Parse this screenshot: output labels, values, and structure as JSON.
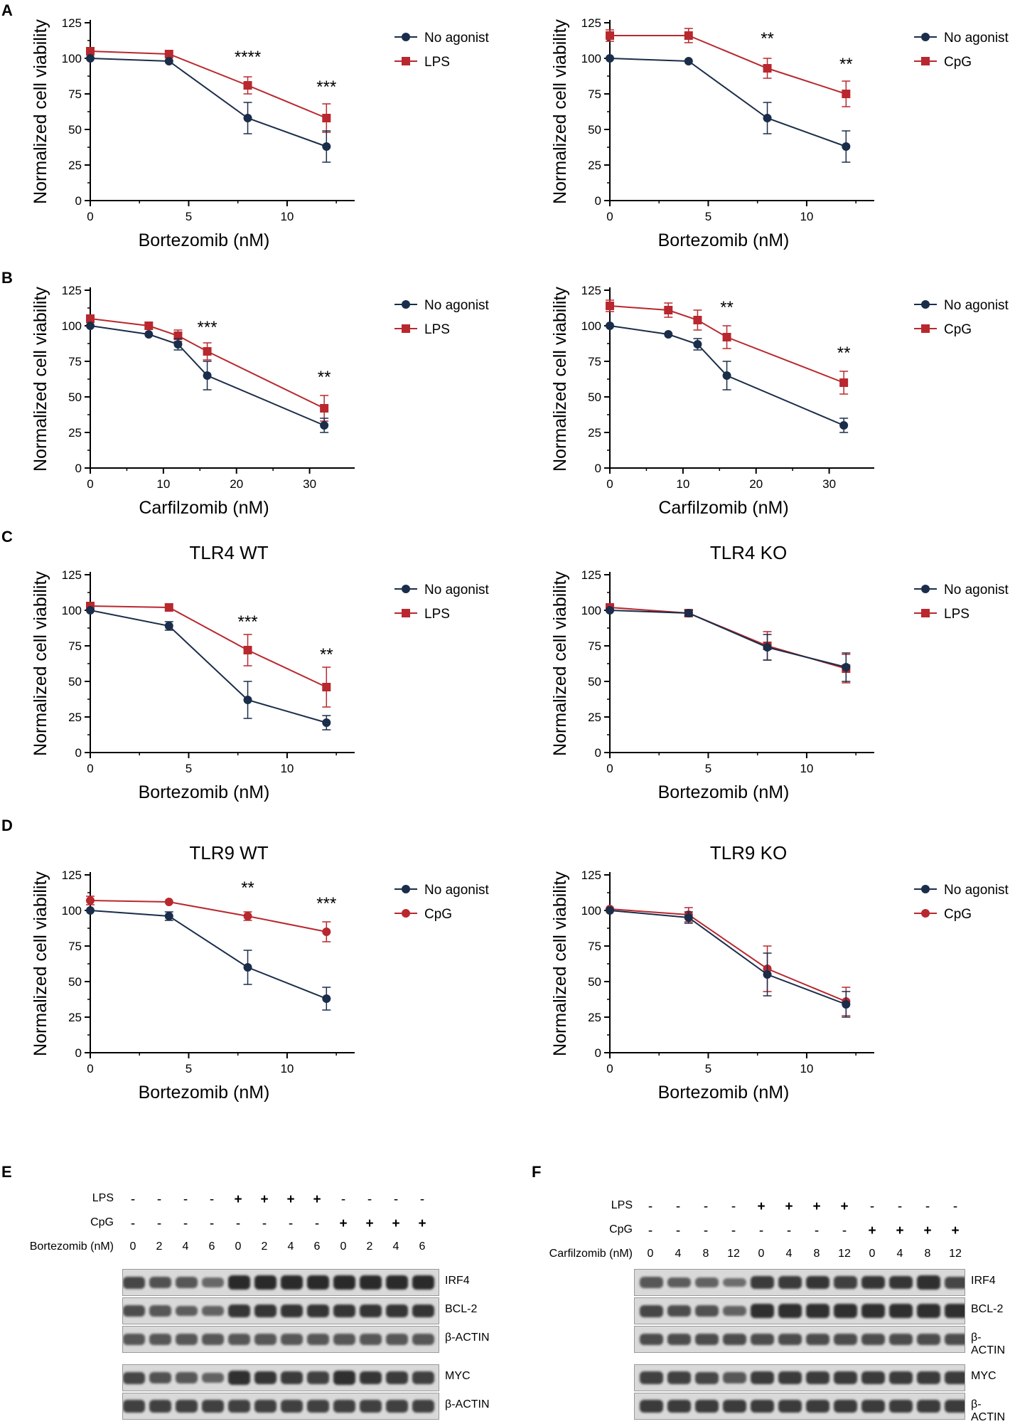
{
  "colors": {
    "control": "#1a2d4a",
    "agonist": "#b8282e",
    "band": "#2a2a2a"
  },
  "panel_letters": [
    "A",
    "B",
    "C",
    "D",
    "E",
    "F"
  ],
  "chart_data": [
    {
      "id": "A1",
      "type": "line",
      "title": "",
      "xlabel": "Bortezomib (nM)",
      "ylabel": "Normalized cell viability",
      "xlim": [
        0,
        13
      ],
      "ylim": [
        0,
        125
      ],
      "xticks": [
        0,
        5,
        10
      ],
      "yticks": [
        0,
        25,
        50,
        75,
        100,
        125
      ],
      "agonist_marker": "square",
      "series": [
        {
          "name": "No agonist",
          "x": [
            0,
            4,
            8,
            12
          ],
          "y": [
            100,
            98,
            58,
            38
          ],
          "err": [
            0,
            0,
            11,
            11
          ]
        },
        {
          "name": "LPS",
          "x": [
            0,
            4,
            8,
            12
          ],
          "y": [
            105,
            103,
            81,
            58
          ],
          "err": [
            0,
            0,
            6,
            10
          ]
        }
      ],
      "annotations": [
        {
          "x": 8,
          "y": 97,
          "text": "****"
        },
        {
          "x": 12,
          "y": 76,
          "text": "***"
        }
      ]
    },
    {
      "id": "A2",
      "type": "line",
      "title": "",
      "xlabel": "Bortezomib (nM)",
      "ylabel": "Normalized cell viability",
      "xlim": [
        0,
        13
      ],
      "ylim": [
        0,
        125
      ],
      "xticks": [
        0,
        5,
        10
      ],
      "yticks": [
        0,
        25,
        50,
        75,
        100,
        125
      ],
      "agonist_marker": "square",
      "series": [
        {
          "name": "No agonist",
          "x": [
            0,
            4,
            8,
            12
          ],
          "y": [
            100,
            98,
            58,
            38
          ],
          "err": [
            0,
            0,
            11,
            11
          ]
        },
        {
          "name": "CpG",
          "x": [
            0,
            4,
            8,
            12
          ],
          "y": [
            116,
            116,
            93,
            75
          ],
          "err": [
            4,
            5,
            7,
            9
          ]
        }
      ],
      "annotations": [
        {
          "x": 8,
          "y": 110,
          "text": "**"
        },
        {
          "x": 12,
          "y": 92,
          "text": "**"
        }
      ]
    },
    {
      "id": "B1",
      "type": "line",
      "title": "",
      "xlabel": "Carfilzomib (nM)",
      "ylabel": "Normalized cell viability",
      "xlim": [
        0,
        35
      ],
      "ylim": [
        0,
        125
      ],
      "xticks": [
        0,
        10,
        20,
        30
      ],
      "yticks": [
        0,
        25,
        50,
        75,
        100,
        125
      ],
      "agonist_marker": "square",
      "series": [
        {
          "name": "No agonist",
          "x": [
            0,
            8,
            12,
            16,
            32
          ],
          "y": [
            100,
            94,
            87,
            65,
            30
          ],
          "err": [
            0,
            0,
            4,
            10,
            5
          ]
        },
        {
          "name": "LPS",
          "x": [
            0,
            8,
            12,
            16,
            32
          ],
          "y": [
            105,
            100,
            93,
            82,
            42
          ],
          "err": [
            0,
            0,
            4,
            6,
            9
          ]
        }
      ],
      "annotations": [
        {
          "x": 16,
          "y": 95,
          "text": "***"
        },
        {
          "x": 32,
          "y": 60,
          "text": "**"
        }
      ]
    },
    {
      "id": "B2",
      "type": "line",
      "title": "",
      "xlabel": "Carfilzomib (nM)",
      "ylabel": "Normalized cell viability",
      "xlim": [
        0,
        35
      ],
      "ylim": [
        0,
        125
      ],
      "xticks": [
        0,
        10,
        20,
        30
      ],
      "yticks": [
        0,
        25,
        50,
        75,
        100,
        125
      ],
      "agonist_marker": "square",
      "series": [
        {
          "name": "No agonist",
          "x": [
            0,
            8,
            12,
            16,
            32
          ],
          "y": [
            100,
            94,
            87,
            65,
            30
          ],
          "err": [
            0,
            0,
            4,
            10,
            5
          ]
        },
        {
          "name": "CpG",
          "x": [
            0,
            8,
            12,
            16,
            32
          ],
          "y": [
            114,
            111,
            104,
            92,
            60
          ],
          "err": [
            4,
            5,
            7,
            8,
            8
          ]
        }
      ],
      "annotations": [
        {
          "x": 16,
          "y": 109,
          "text": "**"
        },
        {
          "x": 32,
          "y": 77,
          "text": "**"
        }
      ]
    },
    {
      "id": "C1",
      "type": "line",
      "title": "TLR4 WT",
      "xlabel": "Bortezomib (nM)",
      "ylabel": "Normalized cell viability",
      "xlim": [
        0,
        13
      ],
      "ylim": [
        0,
        125
      ],
      "xticks": [
        0,
        5,
        10
      ],
      "yticks": [
        0,
        25,
        50,
        75,
        100,
        125
      ],
      "agonist_marker": "square",
      "series": [
        {
          "name": "No agonist",
          "x": [
            0,
            4,
            8,
            12
          ],
          "y": [
            100,
            89,
            37,
            21
          ],
          "err": [
            0,
            3,
            13,
            5
          ]
        },
        {
          "name": "LPS",
          "x": [
            0,
            4,
            8,
            12
          ],
          "y": [
            103,
            102,
            72,
            46
          ],
          "err": [
            0,
            0,
            11,
            14
          ]
        }
      ],
      "annotations": [
        {
          "x": 8,
          "y": 88,
          "text": "***"
        },
        {
          "x": 12,
          "y": 65,
          "text": "**"
        }
      ]
    },
    {
      "id": "C2",
      "type": "line",
      "title": "TLR4 KO",
      "xlabel": "Bortezomib (nM)",
      "ylabel": "Normalized cell viability",
      "xlim": [
        0,
        13
      ],
      "ylim": [
        0,
        125
      ],
      "xticks": [
        0,
        5,
        10
      ],
      "yticks": [
        0,
        25,
        50,
        75,
        100,
        125
      ],
      "agonist_marker": "square",
      "series": [
        {
          "name": "No agonist",
          "x": [
            0,
            4,
            8,
            12
          ],
          "y": [
            100,
            98,
            74,
            60
          ],
          "err": [
            0,
            2,
            9,
            10
          ]
        },
        {
          "name": "LPS",
          "x": [
            0,
            4,
            8,
            12
          ],
          "y": [
            102,
            98,
            75,
            59
          ],
          "err": [
            0,
            2,
            10,
            10
          ]
        }
      ],
      "annotations": []
    },
    {
      "id": "D1",
      "type": "line",
      "title": "TLR9 WT",
      "xlabel": "Bortezomib (nM)",
      "ylabel": "Normalized cell viability",
      "xlim": [
        0,
        13
      ],
      "ylim": [
        0,
        125
      ],
      "xticks": [
        0,
        5,
        10
      ],
      "yticks": [
        0,
        25,
        50,
        75,
        100,
        125
      ],
      "agonist_marker": "circle",
      "series": [
        {
          "name": "No agonist",
          "x": [
            0,
            4,
            8,
            12
          ],
          "y": [
            100,
            96,
            60,
            38
          ],
          "err": [
            0,
            3,
            12,
            8
          ]
        },
        {
          "name": "CpG",
          "x": [
            0,
            4,
            8,
            12
          ],
          "y": [
            107,
            106,
            96,
            85
          ],
          "err": [
            3,
            0,
            3,
            7
          ]
        }
      ],
      "annotations": [
        {
          "x": 8,
          "y": 112,
          "text": "**"
        },
        {
          "x": 12,
          "y": 101,
          "text": "***"
        }
      ]
    },
    {
      "id": "D2",
      "type": "line",
      "title": "TLR9 KO",
      "xlabel": "Bortezomib (nM)",
      "ylabel": "Normalized cell viability",
      "xlim": [
        0,
        13
      ],
      "ylim": [
        0,
        125
      ],
      "xticks": [
        0,
        5,
        10
      ],
      "yticks": [
        0,
        25,
        50,
        75,
        100,
        125
      ],
      "agonist_marker": "circle",
      "series": [
        {
          "name": "No agonist",
          "x": [
            0,
            4,
            8,
            12
          ],
          "y": [
            100,
            95,
            55,
            34
          ],
          "err": [
            0,
            4,
            15,
            9
          ]
        },
        {
          "name": "CpG",
          "x": [
            0,
            4,
            8,
            12
          ],
          "y": [
            101,
            97,
            59,
            36
          ],
          "err": [
            0,
            5,
            16,
            10
          ]
        }
      ],
      "annotations": []
    }
  ],
  "blots": [
    {
      "id": "E",
      "treat_rows": [
        {
          "label": "LPS",
          "values": [
            "-",
            "-",
            "-",
            "-",
            "+",
            "+",
            "+",
            "+",
            "-",
            "-",
            "-",
            "-"
          ]
        },
        {
          "label": "CpG",
          "values": [
            "-",
            "-",
            "-",
            "-",
            "-",
            "-",
            "-",
            "-",
            "+",
            "+",
            "+",
            "+"
          ]
        },
        {
          "label": "Bortezomib (nM)",
          "values": [
            "0",
            "2",
            "4",
            "6",
            "0",
            "2",
            "4",
            "6",
            "0",
            "2",
            "4",
            "6"
          ]
        }
      ],
      "bands": [
        {
          "label": "IRF4",
          "intensity": [
            0.75,
            0.65,
            0.6,
            0.45,
            1,
            1,
            1,
            1,
            1,
            1,
            1,
            1
          ]
        },
        {
          "label": "BCL-2",
          "intensity": [
            0.7,
            0.6,
            0.55,
            0.5,
            0.9,
            0.9,
            0.9,
            0.9,
            0.9,
            0.9,
            0.9,
            0.9
          ]
        },
        {
          "label": "β-ACTIN",
          "intensity": [
            0.6,
            0.6,
            0.6,
            0.6,
            0.6,
            0.6,
            0.6,
            0.6,
            0.6,
            0.6,
            0.6,
            0.6
          ]
        },
        {
          "label": "MYC",
          "intensity": [
            0.75,
            0.65,
            0.6,
            0.5,
            0.95,
            0.9,
            0.85,
            0.8,
            0.95,
            0.9,
            0.85,
            0.8
          ]
        },
        {
          "label": "β-ACTIN",
          "intensity": [
            0.8,
            0.8,
            0.8,
            0.8,
            0.8,
            0.8,
            0.8,
            0.8,
            0.8,
            0.8,
            0.8,
            0.8
          ]
        }
      ]
    },
    {
      "id": "F",
      "treat_rows": [
        {
          "label": "LPS",
          "values": [
            "-",
            "-",
            "-",
            "-",
            "+",
            "+",
            "+",
            "+",
            "-",
            "-",
            "-",
            "-"
          ]
        },
        {
          "label": "CpG",
          "values": [
            "-",
            "-",
            "-",
            "-",
            "-",
            "-",
            "-",
            "-",
            "+",
            "+",
            "+",
            "+"
          ]
        },
        {
          "label": "Carfilzomib (nM)",
          "values": [
            "0",
            "4",
            "8",
            "12",
            "0",
            "4",
            "8",
            "12",
            "0",
            "4",
            "8",
            "12"
          ]
        }
      ],
      "bands": [
        {
          "label": "IRF4",
          "intensity": [
            0.6,
            0.55,
            0.5,
            0.4,
            0.85,
            0.85,
            0.9,
            0.8,
            0.9,
            0.9,
            0.95,
            0.75
          ]
        },
        {
          "label": "BCL-2",
          "intensity": [
            0.75,
            0.7,
            0.65,
            0.5,
            0.95,
            0.95,
            0.95,
            0.95,
            0.95,
            0.95,
            0.95,
            0.95
          ]
        },
        {
          "label": "β-ACTIN",
          "intensity": [
            0.7,
            0.7,
            0.7,
            0.7,
            0.7,
            0.7,
            0.7,
            0.7,
            0.7,
            0.7,
            0.7,
            0.7
          ]
        },
        {
          "label": "MYC",
          "intensity": [
            0.8,
            0.8,
            0.75,
            0.6,
            0.85,
            0.85,
            0.85,
            0.85,
            0.85,
            0.85,
            0.85,
            0.85
          ]
        },
        {
          "label": "β-ACTIN",
          "intensity": [
            0.85,
            0.85,
            0.85,
            0.85,
            0.85,
            0.85,
            0.85,
            0.85,
            0.85,
            0.85,
            0.85,
            0.85
          ]
        }
      ]
    }
  ]
}
